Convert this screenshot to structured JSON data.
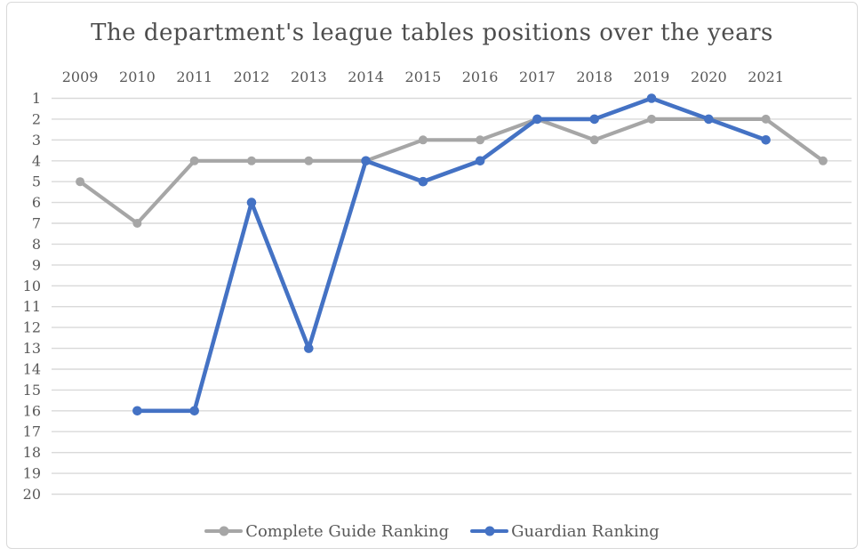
{
  "chart_data": {
    "type": "line",
    "title": "The department's league tables positions over the years",
    "categories": [
      "2009",
      "2010",
      "2011",
      "2012",
      "2013",
      "2014",
      "2015",
      "2016",
      "2017",
      "2018",
      "2019",
      "2020",
      "2021",
      ""
    ],
    "series": [
      {
        "name": "Complete Guide Ranking",
        "color": "#A6A6A6",
        "values": [
          5,
          7,
          4,
          4,
          4,
          4,
          3,
          3,
          2,
          3,
          2,
          2,
          2,
          4
        ]
      },
      {
        "name": "Guardian Ranking",
        "color": "#4472C4",
        "values": [
          null,
          16,
          16,
          6,
          13,
          4,
          5,
          4,
          2,
          2,
          1,
          2,
          3,
          null
        ]
      }
    ],
    "y_axis": {
      "min": 1,
      "max": 20,
      "inverted": true,
      "ticks": [
        1,
        2,
        3,
        4,
        5,
        6,
        7,
        8,
        9,
        10,
        11,
        12,
        13,
        14,
        15,
        16,
        17,
        18,
        19,
        20
      ]
    },
    "x_axis_position": "top",
    "grid": true,
    "grid_color": "#D9D9D9",
    "legend_position": "bottom"
  }
}
